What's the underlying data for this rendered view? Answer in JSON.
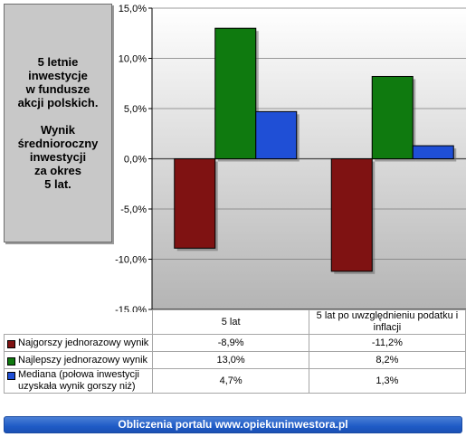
{
  "info_box": {
    "line1": "5 letnie\ninwestycje\nw fundusze\nakcji polskich.",
    "line2": "Wynik\nśrednioroczny\ninwestycji\nza okres\n5 lat."
  },
  "chart_data": {
    "type": "bar",
    "categories": [
      "5 lat",
      "5 lat po uwzględnieniu podatku i inflacji"
    ],
    "series": [
      {
        "name": "Najgorszy jednorazowy wynik",
        "values": [
          -8.9,
          -11.2
        ],
        "display": [
          "-8,9%",
          "-11,2%"
        ],
        "color": "#7f1212"
      },
      {
        "name": "Najlepszy jednorazowy wynik",
        "values": [
          13.0,
          8.2
        ],
        "display": [
          "13,0%",
          "8,2%"
        ],
        "color": "#0f7a0f"
      },
      {
        "name": "Mediana (połowa inwestycji uzyskała wynik gorszy niż)",
        "values": [
          4.7,
          1.3
        ],
        "display": [
          "4,7%",
          "1,3%"
        ],
        "color": "#1f4fd6"
      }
    ],
    "ylim": [
      -15,
      15
    ],
    "yticks": [
      15,
      10,
      5,
      0,
      -5,
      -10,
      -15
    ],
    "ytick_labels": [
      "15,0%",
      "10,0%",
      "5,0%",
      "0,0%",
      "-5,0%",
      "-10,0%",
      "-15,0%"
    ],
    "grid": true,
    "legend": "table-below"
  },
  "footer": {
    "text": "Obliczenia portalu www.opiekuninwestora.pl"
  }
}
